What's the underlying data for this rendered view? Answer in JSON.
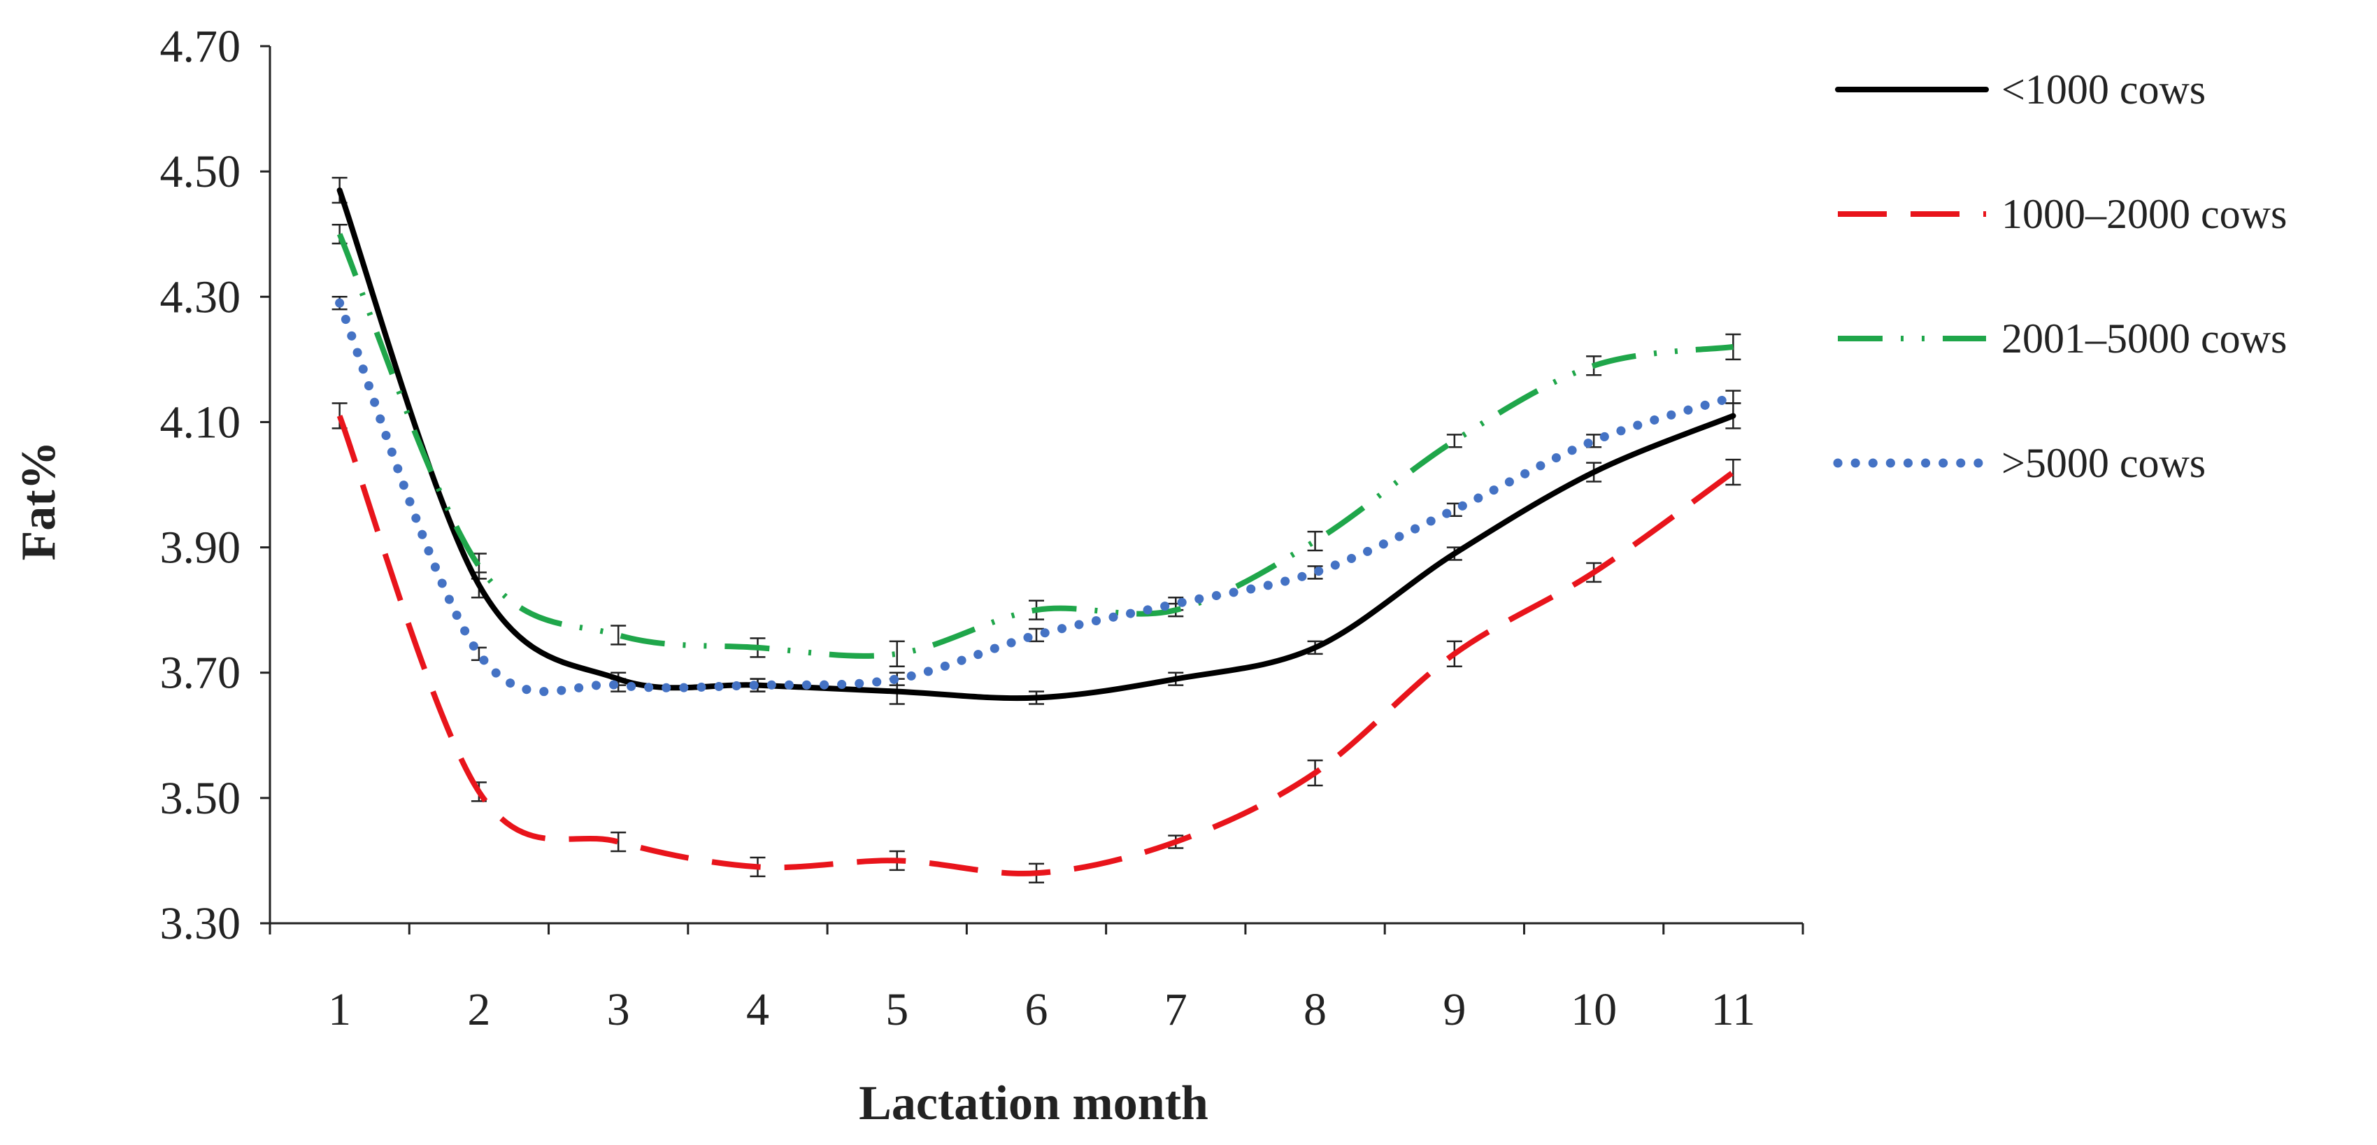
{
  "chart_data": {
    "type": "line",
    "title": "",
    "xlabel": "Lactation month",
    "ylabel": "Fat%",
    "ylim": [
      3.3,
      4.7
    ],
    "yticks": [
      "4.70",
      "4.50",
      "4.30",
      "4.10",
      "3.90",
      "3.70",
      "3.50",
      "3.30"
    ],
    "ytick_values": [
      4.7,
      4.5,
      4.3,
      4.1,
      3.9,
      3.7,
      3.5,
      3.3
    ],
    "categories": [
      "1",
      "2",
      "3",
      "4",
      "5",
      "6",
      "7",
      "8",
      "9",
      "10",
      "11"
    ],
    "grid": false,
    "legend_position": "right",
    "series": [
      {
        "name": "<1000 cows",
        "color": "#000000",
        "style": "solid",
        "values": [
          4.47,
          3.84,
          3.69,
          3.68,
          3.67,
          3.66,
          3.69,
          3.74,
          3.89,
          4.02,
          4.11
        ],
        "errors": [
          0.02,
          0.02,
          0.01,
          0.01,
          0.02,
          0.01,
          0.01,
          0.01,
          0.01,
          0.015,
          0.02
        ]
      },
      {
        "name": "1000–2000 cows",
        "color": "#e8141b",
        "style": "dashed",
        "values": [
          4.11,
          3.51,
          3.43,
          3.39,
          3.4,
          3.38,
          3.43,
          3.54,
          3.73,
          3.86,
          4.02
        ],
        "errors": [
          0.02,
          0.015,
          0.015,
          0.015,
          0.015,
          0.015,
          0.01,
          0.02,
          0.02,
          0.015,
          0.02
        ]
      },
      {
        "name": "2001–5000 cows",
        "color": "#1fa64a",
        "style": "dashdot",
        "values": [
          4.4,
          3.87,
          3.76,
          3.74,
          3.73,
          3.8,
          3.8,
          3.91,
          4.07,
          4.19,
          4.22
        ],
        "errors": [
          0.015,
          0.02,
          0.015,
          0.015,
          0.02,
          0.015,
          0.01,
          0.015,
          0.01,
          0.015,
          0.02
        ]
      },
      {
        "name": ">5000 cows",
        "color": "#4472c4",
        "style": "dotted",
        "values": [
          4.29,
          3.73,
          3.68,
          3.68,
          3.69,
          3.76,
          3.81,
          3.86,
          3.96,
          4.07,
          4.14
        ],
        "errors": [
          0.01,
          0.01,
          0.01,
          0.01,
          0.01,
          0.01,
          0.01,
          0.01,
          0.01,
          0.01,
          0.01
        ]
      }
    ]
  }
}
